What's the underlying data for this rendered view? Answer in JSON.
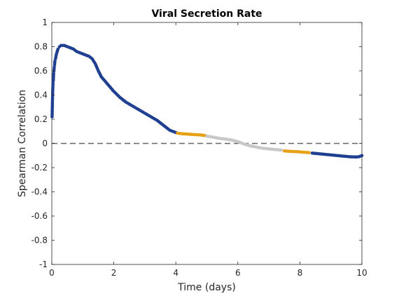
{
  "chart_data": {
    "type": "scatter",
    "title": "Viral Secretion Rate",
    "xlabel": "Time (days)",
    "ylabel": "Spearman Correlation",
    "xlim": [
      0,
      10
    ],
    "ylim": [
      -1,
      1
    ],
    "xticks": [
      0,
      2,
      4,
      6,
      8,
      10
    ],
    "yticks": [
      -1,
      -0.8,
      -0.6,
      -0.4,
      -0.2,
      0,
      0.2,
      0.4,
      0.6,
      0.8,
      1
    ],
    "reference_line": {
      "y": 0,
      "style": "dashed",
      "color": "#666666"
    },
    "grid": false,
    "colors": {
      "blue": "#1f3f91",
      "orange": "#e6a117",
      "gray": "#c8c8c8"
    },
    "series": [
      {
        "color": "blue",
        "points": [
          [
            0.01,
            0.22
          ],
          [
            0.02,
            0.34
          ],
          [
            0.03,
            0.44
          ],
          [
            0.04,
            0.5
          ],
          [
            0.05,
            0.52
          ],
          [
            0.06,
            0.58
          ],
          [
            0.07,
            0.6
          ],
          [
            0.08,
            0.63
          ],
          [
            0.09,
            0.65
          ],
          [
            0.1,
            0.68
          ],
          [
            0.12,
            0.7
          ],
          [
            0.15,
            0.74
          ],
          [
            0.2,
            0.78
          ],
          [
            0.25,
            0.8
          ],
          [
            0.3,
            0.81
          ],
          [
            0.4,
            0.81
          ],
          [
            0.5,
            0.8
          ],
          [
            0.6,
            0.79
          ],
          [
            0.7,
            0.78
          ],
          [
            0.8,
            0.76
          ],
          [
            0.9,
            0.75
          ],
          [
            1.0,
            0.74
          ],
          [
            1.1,
            0.73
          ],
          [
            1.2,
            0.72
          ],
          [
            1.3,
            0.7
          ],
          [
            1.4,
            0.66
          ],
          [
            1.5,
            0.6
          ],
          [
            1.6,
            0.55
          ],
          [
            1.7,
            0.52
          ],
          [
            1.8,
            0.49
          ],
          [
            1.9,
            0.46
          ],
          [
            2.0,
            0.43
          ],
          [
            2.2,
            0.38
          ],
          [
            2.4,
            0.34
          ],
          [
            2.6,
            0.31
          ],
          [
            2.8,
            0.28
          ],
          [
            3.0,
            0.25
          ],
          [
            3.2,
            0.22
          ],
          [
            3.4,
            0.19
          ],
          [
            3.6,
            0.15
          ],
          [
            3.8,
            0.11
          ],
          [
            3.9,
            0.1
          ],
          [
            4.0,
            0.09
          ]
        ]
      },
      {
        "color": "orange",
        "points": [
          [
            4.05,
            0.085
          ],
          [
            4.2,
            0.08
          ],
          [
            4.4,
            0.077
          ],
          [
            4.6,
            0.073
          ],
          [
            4.8,
            0.07
          ],
          [
            4.95,
            0.065
          ]
        ]
      },
      {
        "color": "gray",
        "points": [
          [
            5.0,
            0.06
          ],
          [
            5.2,
            0.052
          ],
          [
            5.4,
            0.042
          ],
          [
            5.6,
            0.036
          ],
          [
            5.8,
            0.028
          ],
          [
            6.0,
            0.015
          ],
          [
            6.2,
            -0.005
          ],
          [
            6.4,
            -0.02
          ],
          [
            6.6,
            -0.03
          ],
          [
            6.8,
            -0.04
          ],
          [
            7.0,
            -0.045
          ],
          [
            7.2,
            -0.05
          ],
          [
            7.4,
            -0.055
          ]
        ]
      },
      {
        "color": "orange",
        "points": [
          [
            7.5,
            -0.062
          ],
          [
            7.7,
            -0.066
          ],
          [
            7.9,
            -0.068
          ],
          [
            8.1,
            -0.072
          ],
          [
            8.3,
            -0.076
          ]
        ]
      },
      {
        "color": "blue",
        "points": [
          [
            8.4,
            -0.08
          ],
          [
            8.6,
            -0.085
          ],
          [
            8.8,
            -0.09
          ],
          [
            9.0,
            -0.095
          ],
          [
            9.2,
            -0.1
          ],
          [
            9.4,
            -0.105
          ],
          [
            9.6,
            -0.11
          ],
          [
            9.8,
            -0.112
          ],
          [
            9.9,
            -0.11
          ],
          [
            10.0,
            -0.1
          ]
        ]
      }
    ]
  }
}
